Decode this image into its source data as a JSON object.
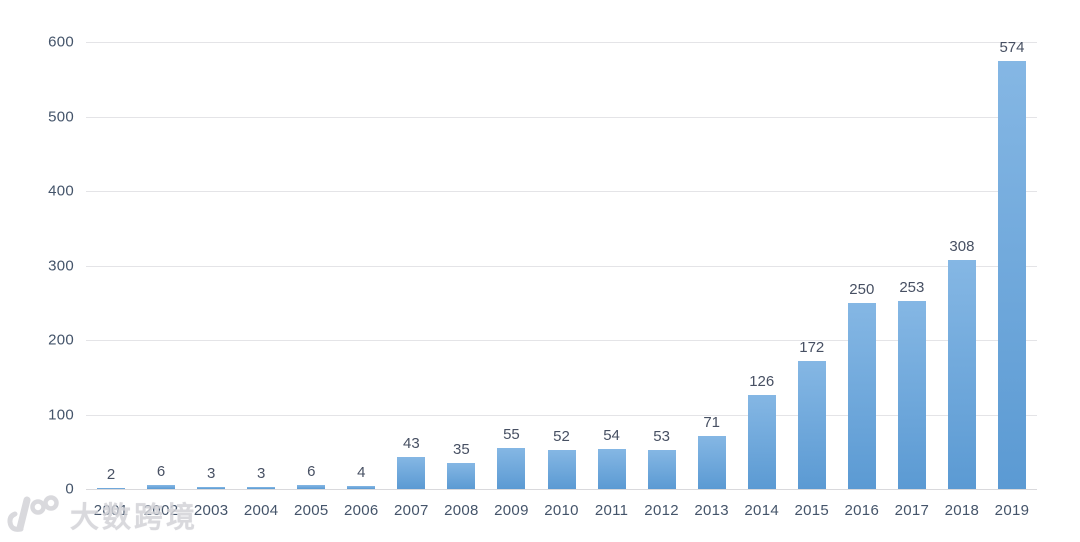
{
  "watermark": {
    "logo_icon": "dashukuajing-100-logo",
    "text": "大数跨境"
  },
  "chart_data": {
    "type": "bar",
    "title": "",
    "xlabel": "",
    "ylabel": "",
    "categories": [
      "2001",
      "2002",
      "2003",
      "2004",
      "2005",
      "2006",
      "2007",
      "2008",
      "2009",
      "2010",
      "2011",
      "2012",
      "2013",
      "2014",
      "2015",
      "2016",
      "2017",
      "2018",
      "2019"
    ],
    "values": [
      2,
      6,
      3,
      3,
      6,
      4,
      43,
      35,
      55,
      52,
      54,
      53,
      71,
      126,
      172,
      250,
      253,
      308,
      574
    ],
    "data_labels_shown": true,
    "ylim": [
      0,
      600
    ],
    "yticks": [
      0,
      100,
      200,
      300,
      400,
      500,
      600
    ],
    "grid": "horizontal",
    "legend": "none",
    "colors": {
      "bar_top": "#85b7e4",
      "bar_bottom": "#5b9ad3",
      "tick_label": "#44546a",
      "data_label": "#475063",
      "gridline": "#e4e4e7",
      "background": "#ffffff",
      "watermark": "#d3d3d8"
    }
  }
}
